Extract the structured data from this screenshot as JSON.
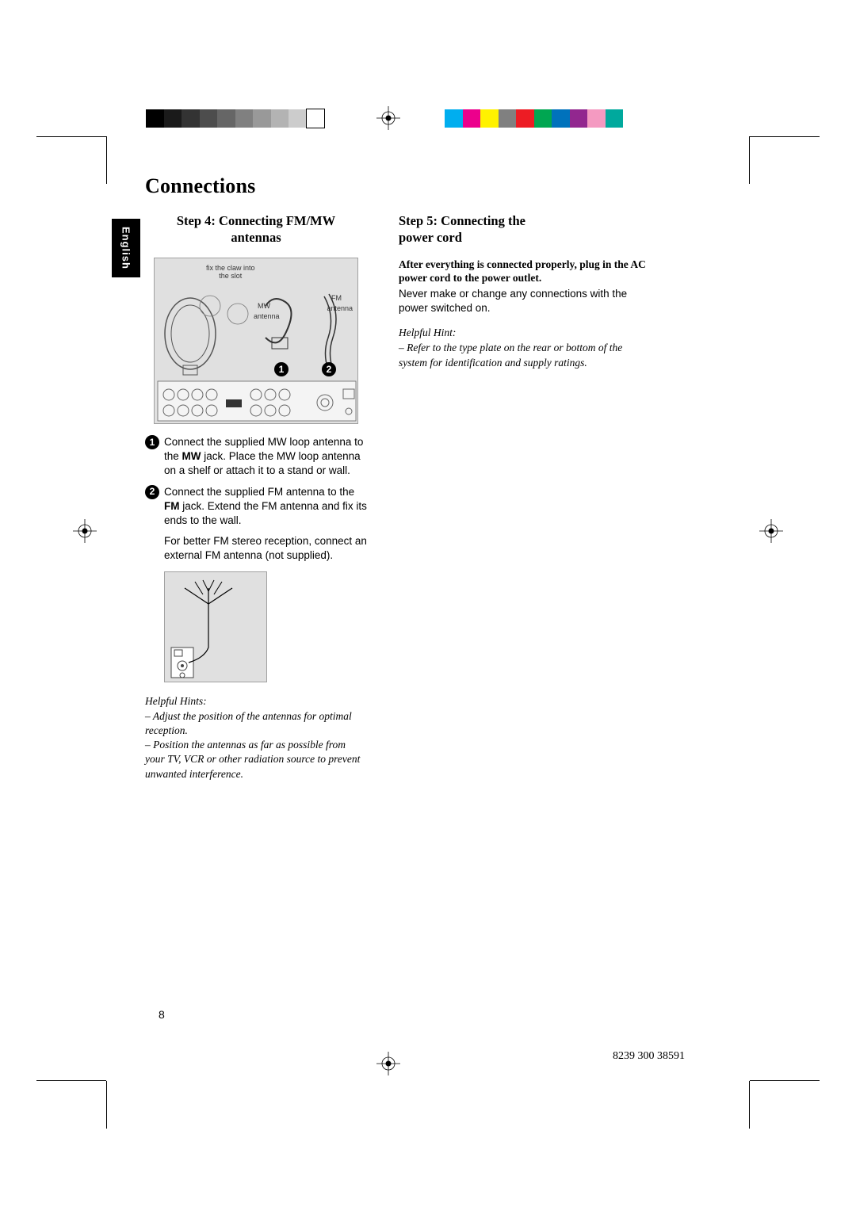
{
  "lang_tab": "English",
  "title": "Connections",
  "left": {
    "heading_l1": "Step 4:  Connecting FM/MW",
    "heading_l2": "antennas",
    "diagram": {
      "claw_label_l1": "fix the claw into",
      "claw_label_l2": "the slot",
      "mw_label": "MW",
      "mw_antenna_label": "antenna",
      "fm_label": "FM",
      "fm_antenna_label": "antenna",
      "badge_1": "1",
      "badge_2": "2"
    },
    "step1_num": "1",
    "step1_text_pre": "Connect the supplied MW loop antenna to the ",
    "step1_text_bold": "MW",
    "step1_text_post": " jack.  Place the MW loop antenna on a shelf or attach it to a stand or wall.",
    "step2_num": "2",
    "step2_text_pre": "Connect the supplied FM antenna to the ",
    "step2_text_bold": "FM",
    "step2_text_post": " jack.  Extend the FM antenna and fix its ends to the wall.",
    "extra_p": "For better FM stereo reception, connect an external FM antenna (not supplied).",
    "hints_head": "Helpful Hints:",
    "hint1": "– Adjust the position of the antennas for optimal reception.",
    "hint2": "– Position the antennas as far as possible from your TV, VCR or other radiation source to prevent unwanted interference."
  },
  "right": {
    "heading_l1": "Step 5:  Connecting the",
    "heading_l2": "power cord",
    "bold_p": "After everything is connected properly, plug in the AC power cord to the power outlet.",
    "reg_p": "Never make or change any connections with the power switched on.",
    "hint_head": "Helpful Hint:",
    "hint": "– Refer to the type plate on the rear or bottom of the system for identification and supply ratings."
  },
  "page_number": "8",
  "doc_code": "8239 300 38591",
  "colors": {
    "gray_scale": [
      "#000000",
      "#1a1a1a",
      "#333333",
      "#4d4d4d",
      "#666666",
      "#808080",
      "#999999",
      "#b3b3b3",
      "#cccccc",
      "#ffffff"
    ],
    "color_bar": [
      "#00aeef",
      "#ec008c",
      "#fff200",
      "#808080",
      "#ed1c24",
      "#00a651",
      "#0072bc",
      "#92278f",
      "#f49ac1",
      "#00a99d"
    ]
  }
}
